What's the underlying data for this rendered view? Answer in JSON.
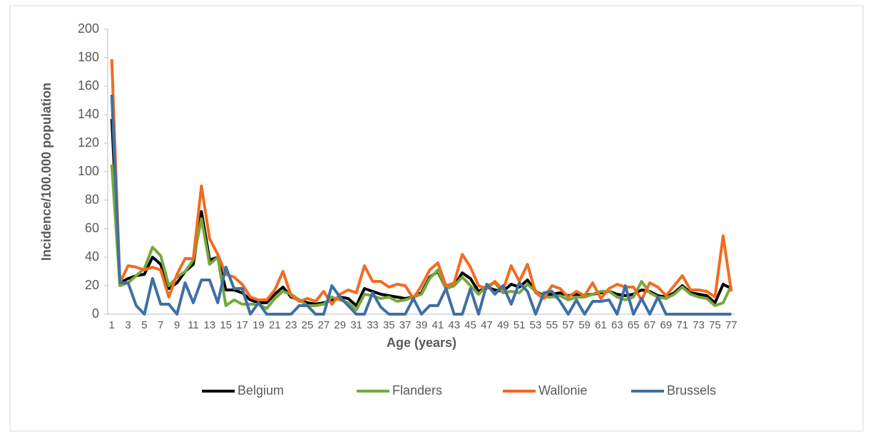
{
  "chart_data": {
    "type": "line",
    "y_label": "Incidence/100.000 population",
    "x_label": "Age (years)",
    "categories": [
      1,
      null,
      3,
      null,
      5,
      null,
      7,
      null,
      9,
      null,
      11,
      null,
      13,
      null,
      15,
      null,
      17,
      null,
      19,
      null,
      21,
      null,
      23,
      null,
      25,
      null,
      27,
      null,
      29,
      null,
      31,
      null,
      33,
      null,
      35,
      null,
      37,
      null,
      39,
      null,
      41,
      null,
      43,
      null,
      45,
      null,
      47,
      null,
      49,
      null,
      51,
      null,
      53,
      null,
      55,
      null,
      57,
      null,
      59,
      null,
      61,
      null,
      63,
      null,
      65,
      null,
      67,
      null,
      69,
      null,
      71,
      null,
      73,
      null,
      75,
      null,
      77
    ],
    "ylim": [
      0,
      200
    ],
    "yticks": [
      0,
      20,
      40,
      60,
      80,
      100,
      120,
      140,
      160,
      180,
      200
    ],
    "grid": false,
    "legend": "bottom",
    "series": [
      {
        "name": "Belgium",
        "color": "#000000",
        "values": [
          137,
          22,
          25,
          27,
          28,
          40,
          35,
          18,
          22,
          30,
          35,
          72,
          38,
          40,
          17,
          17,
          15,
          10,
          8,
          8,
          14,
          19,
          12,
          10,
          8,
          7,
          8,
          10,
          12,
          11,
          6,
          18,
          16,
          14,
          13,
          12,
          11,
          12,
          15,
          26,
          30,
          18,
          20,
          29,
          25,
          16,
          19,
          17,
          16,
          21,
          19,
          24,
          16,
          13,
          14,
          15,
          13,
          14,
          13,
          14,
          15,
          16,
          14,
          13,
          14,
          17,
          16,
          13,
          12,
          15,
          20,
          15,
          14,
          13,
          8,
          21,
          18
        ]
      },
      {
        "name": "Flanders",
        "color": "#77a83b",
        "values": [
          105,
          20,
          22,
          27,
          32,
          47,
          41,
          20,
          26,
          30,
          38,
          67,
          35,
          40,
          6,
          10,
          7,
          7,
          7,
          4,
          11,
          16,
          14,
          10,
          6,
          6,
          7,
          12,
          10,
          8,
          3,
          14,
          13,
          11,
          12,
          9,
          10,
          12,
          14,
          25,
          31,
          18,
          20,
          26,
          20,
          14,
          20,
          22,
          15,
          16,
          15,
          21,
          16,
          12,
          12,
          13,
          10,
          12,
          12,
          14,
          16,
          16,
          12,
          10,
          12,
          23,
          15,
          12,
          11,
          14,
          19,
          14,
          12,
          11,
          6,
          8,
          20
        ]
      },
      {
        "name": "Wallonie",
        "color": "#f26b21",
        "values": [
          179,
          22,
          34,
          33,
          31,
          33,
          31,
          12,
          28,
          39,
          39,
          90,
          53,
          42,
          28,
          26,
          21,
          12,
          10,
          10,
          17,
          30,
          13,
          9,
          11,
          9,
          16,
          7,
          14,
          17,
          15,
          34,
          23,
          23,
          19,
          21,
          20,
          11,
          20,
          31,
          36,
          20,
          22,
          42,
          33,
          20,
          18,
          23,
          17,
          34,
          23,
          35,
          15,
          11,
          20,
          18,
          12,
          16,
          13,
          22,
          11,
          18,
          21,
          19,
          19,
          10,
          22,
          19,
          13,
          20,
          27,
          17,
          17,
          16,
          12,
          55,
          16
        ]
      },
      {
        "name": "Brussels",
        "color": "#3f6fa6",
        "values": [
          154,
          22,
          22,
          6,
          0,
          25,
          7,
          7,
          0,
          22,
          8,
          24,
          24,
          8,
          33,
          18,
          18,
          0,
          8,
          0,
          0,
          0,
          0,
          6,
          6,
          0,
          0,
          20,
          12,
          6,
          0,
          0,
          15,
          5,
          0,
          0,
          0,
          11,
          0,
          6,
          6,
          18,
          0,
          0,
          18,
          0,
          21,
          14,
          20,
          7,
          22,
          16,
          0,
          15,
          16,
          9,
          0,
          10,
          0,
          9,
          9,
          10,
          0,
          20,
          0,
          11,
          0,
          12,
          0,
          0,
          0,
          0,
          0,
          0,
          0,
          0,
          0
        ]
      }
    ]
  }
}
